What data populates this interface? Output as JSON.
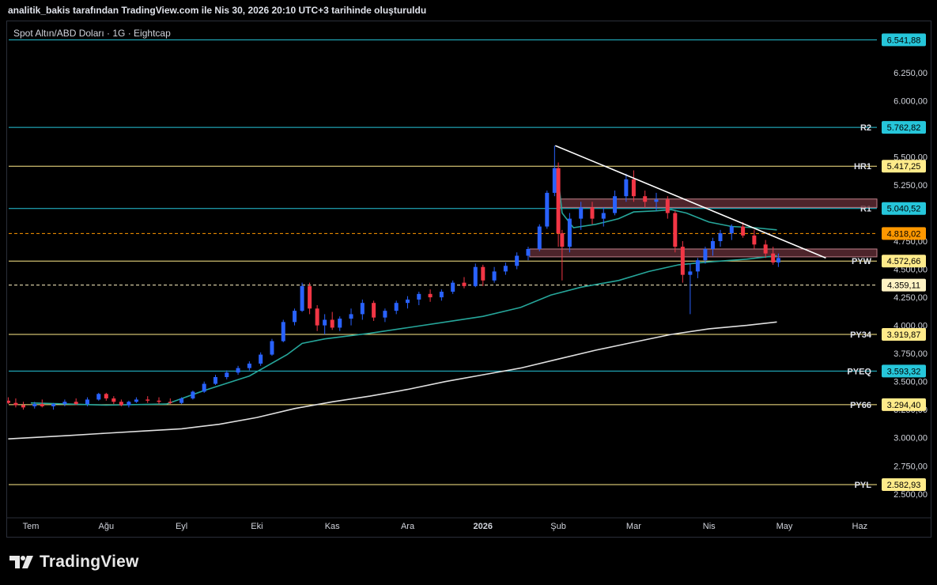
{
  "header": {
    "text": "analitik_bakis tarafından TradingView.com ile Nis 30, 2026 20:10 UTC+3 tarihinde oluşturuldu"
  },
  "brand": {
    "name": "TradingView"
  },
  "chart_data": {
    "type": "candlestick",
    "title": "Spot Altın/ABD Doları · 1G · Eightcap",
    "ylim": [
      2400,
      6650
    ],
    "colors": {
      "up": "#2962ff",
      "down": "#f23645",
      "ema_fast": "#26a69a",
      "ema_slow": "#e0e0e0",
      "trend": "#ffffff",
      "zone": "#5a2a33"
    },
    "y_ticks": [
      {
        "value": 2500,
        "label": "2.500,00"
      },
      {
        "value": 2750,
        "label": "2.750,00"
      },
      {
        "value": 3000,
        "label": "3.000,00"
      },
      {
        "value": 3250,
        "label": "3.250,00"
      },
      {
        "value": 3500,
        "label": "3.500,00"
      },
      {
        "value": 3750,
        "label": "3.750,00"
      },
      {
        "value": 4000,
        "label": "4.000,00"
      },
      {
        "value": 4250,
        "label": "4.250,00"
      },
      {
        "value": 4500,
        "label": "4.500,00"
      },
      {
        "value": 4750,
        "label": "4.750,00"
      },
      {
        "value": 5250,
        "label": "5.250,00"
      },
      {
        "value": 5500,
        "label": "5.500,00"
      },
      {
        "value": 6000,
        "label": "6.000,00"
      },
      {
        "value": 6250,
        "label": "6.250,00"
      }
    ],
    "x_ticks": [
      {
        "month": 0,
        "label": "Tem"
      },
      {
        "month": 1,
        "label": "Ağu"
      },
      {
        "month": 2,
        "label": "Eyl"
      },
      {
        "month": 3,
        "label": "Eki"
      },
      {
        "month": 4,
        "label": "Kas"
      },
      {
        "month": 5,
        "label": "Ara"
      },
      {
        "month": 6,
        "label": "2026"
      },
      {
        "month": 7,
        "label": "Şub"
      },
      {
        "month": 8,
        "label": "Mar"
      },
      {
        "month": 9,
        "label": "Nis"
      },
      {
        "month": 10,
        "label": "May"
      },
      {
        "month": 11,
        "label": "Haz"
      }
    ],
    "levels": [
      {
        "name": "",
        "value": 6541.88,
        "label": "6.541,88",
        "color": "#26c6da",
        "style": "solid"
      },
      {
        "name": "R2",
        "value": 5762.82,
        "label": "5.762,82",
        "color": "#26c6da",
        "style": "solid"
      },
      {
        "name": "HR1",
        "value": 5417.25,
        "label": "5.417,25",
        "color": "#ffeb8a",
        "style": "solid"
      },
      {
        "name": "R1",
        "value": 5040.52,
        "label": "5.040,52",
        "color": "#26c6da",
        "style": "solid"
      },
      {
        "name": "",
        "value": 4818.02,
        "label": "4.818,02",
        "color": "#ff9800",
        "style": "dashed"
      },
      {
        "name": "PYW",
        "value": 4572.66,
        "label": "4.572,66",
        "color": "#ffeb8a",
        "style": "solid"
      },
      {
        "name": "",
        "value": 4359.11,
        "label": "4.359,11",
        "color": "#fff3c4",
        "style": "dashed"
      },
      {
        "name": "PY34",
        "value": 3919.87,
        "label": "3.919,87",
        "color": "#ffeb8a",
        "style": "solid"
      },
      {
        "name": "PYEQ",
        "value": 3593.32,
        "label": "3.593,32",
        "color": "#26c6da",
        "style": "solid"
      },
      {
        "name": "PY66",
        "value": 3294.4,
        "label": "3.294,40",
        "color": "#ffeb8a",
        "style": "solid"
      },
      {
        "name": "PYL",
        "value": 2582.93,
        "label": "2.582,93",
        "color": "#ffeb8a",
        "style": "solid"
      }
    ],
    "zones": [
      {
        "from_month": 7.0,
        "to_month": 11.3,
        "low": 5050,
        "high": 5125
      },
      {
        "from_month": 6.62,
        "to_month": 11.3,
        "low": 4610,
        "high": 4680
      }
    ],
    "trendline": {
      "start": {
        "month": 6.96,
        "value": 5600
      },
      "end": {
        "month": 10.55,
        "value": 4600
      }
    },
    "ema_fast": [
      [
        0,
        3310
      ],
      [
        1,
        3290
      ],
      [
        1.8,
        3300
      ],
      [
        2.3,
        3420
      ],
      [
        2.9,
        3550
      ],
      [
        3.4,
        3740
      ],
      [
        3.6,
        3840
      ],
      [
        3.9,
        3880
      ],
      [
        4.5,
        3930
      ],
      [
        5,
        3980
      ],
      [
        5.6,
        4040
      ],
      [
        6,
        4080
      ],
      [
        6.5,
        4160
      ],
      [
        6.9,
        4270
      ],
      [
        7.3,
        4340
      ],
      [
        7.8,
        4400
      ],
      [
        8.2,
        4480
      ],
      [
        8.6,
        4540
      ],
      [
        9,
        4565
      ],
      [
        9.5,
        4590
      ],
      [
        9.9,
        4620
      ]
    ],
    "ema_slow": [
      [
        -0.3,
        2990
      ],
      [
        0.5,
        3020
      ],
      [
        1,
        3040
      ],
      [
        1.5,
        3060
      ],
      [
        2,
        3080
      ],
      [
        2.5,
        3120
      ],
      [
        3,
        3180
      ],
      [
        3.5,
        3260
      ],
      [
        4,
        3320
      ],
      [
        4.5,
        3370
      ],
      [
        5,
        3430
      ],
      [
        5.5,
        3500
      ],
      [
        6,
        3560
      ],
      [
        6.5,
        3620
      ],
      [
        7,
        3700
      ],
      [
        7.5,
        3780
      ],
      [
        8,
        3850
      ],
      [
        8.5,
        3920
      ],
      [
        9,
        3970
      ],
      [
        9.5,
        4000
      ],
      [
        9.9,
        4030
      ]
    ],
    "ema_mid": [
      [
        7.0,
        5300
      ],
      [
        7.05,
        5000
      ],
      [
        7.2,
        4870
      ],
      [
        7.5,
        4900
      ],
      [
        7.8,
        4950
      ],
      [
        8.0,
        5010
      ],
      [
        8.3,
        5020
      ],
      [
        8.5,
        5030
      ],
      [
        8.7,
        5000
      ],
      [
        9.0,
        4920
      ],
      [
        9.3,
        4880
      ],
      [
        9.6,
        4870
      ],
      [
        9.9,
        4850
      ]
    ],
    "candles": [
      [
        -0.3,
        3330,
        3360,
        3300,
        3310
      ],
      [
        -0.2,
        3310,
        3350,
        3270,
        3290
      ],
      [
        -0.1,
        3290,
        3320,
        3250,
        3270
      ],
      [
        0.05,
        3280,
        3320,
        3260,
        3300
      ],
      [
        0.15,
        3300,
        3340,
        3270,
        3280
      ],
      [
        0.3,
        3280,
        3310,
        3250,
        3300
      ],
      [
        0.45,
        3300,
        3340,
        3280,
        3320
      ],
      [
        0.6,
        3320,
        3350,
        3290,
        3300
      ],
      [
        0.75,
        3300,
        3360,
        3280,
        3340
      ],
      [
        0.9,
        3340,
        3400,
        3330,
        3390
      ],
      [
        1.0,
        3390,
        3400,
        3330,
        3350
      ],
      [
        1.1,
        3350,
        3370,
        3300,
        3320
      ],
      [
        1.2,
        3320,
        3340,
        3280,
        3290
      ],
      [
        1.3,
        3290,
        3330,
        3270,
        3320
      ],
      [
        1.4,
        3320,
        3360,
        3310,
        3340
      ],
      [
        1.55,
        3340,
        3370,
        3310,
        3330
      ],
      [
        1.7,
        3330,
        3360,
        3300,
        3320
      ],
      [
        1.85,
        3320,
        3350,
        3300,
        3310
      ],
      [
        2.0,
        3310,
        3360,
        3300,
        3350
      ],
      [
        2.15,
        3350,
        3420,
        3340,
        3410
      ],
      [
        2.3,
        3410,
        3500,
        3400,
        3480
      ],
      [
        2.45,
        3480,
        3560,
        3470,
        3540
      ],
      [
        2.6,
        3540,
        3600,
        3520,
        3580
      ],
      [
        2.75,
        3580,
        3640,
        3560,
        3620
      ],
      [
        2.9,
        3620,
        3680,
        3600,
        3660
      ],
      [
        3.05,
        3660,
        3760,
        3640,
        3740
      ],
      [
        3.2,
        3740,
        3880,
        3730,
        3860
      ],
      [
        3.35,
        3860,
        4050,
        3850,
        4030
      ],
      [
        3.5,
        4030,
        4150,
        4000,
        4130
      ],
      [
        3.6,
        4130,
        4380,
        4120,
        4350
      ],
      [
        3.7,
        4350,
        4380,
        4100,
        4150
      ],
      [
        3.8,
        4150,
        4180,
        3950,
        4000
      ],
      [
        3.9,
        4000,
        4100,
        3920,
        4050
      ],
      [
        4.0,
        4050,
        4120,
        3960,
        3980
      ],
      [
        4.1,
        3980,
        4080,
        3950,
        4060
      ],
      [
        4.25,
        4060,
        4150,
        4000,
        4100
      ],
      [
        4.4,
        4100,
        4230,
        4050,
        4200
      ],
      [
        4.55,
        4200,
        4220,
        4040,
        4070
      ],
      [
        4.7,
        4070,
        4150,
        4030,
        4130
      ],
      [
        4.85,
        4130,
        4220,
        4100,
        4200
      ],
      [
        5.0,
        4200,
        4260,
        4150,
        4230
      ],
      [
        5.15,
        4230,
        4300,
        4180,
        4280
      ],
      [
        5.3,
        4280,
        4320,
        4210,
        4250
      ],
      [
        5.45,
        4250,
        4320,
        4220,
        4300
      ],
      [
        5.6,
        4300,
        4400,
        4280,
        4380
      ],
      [
        5.75,
        4380,
        4430,
        4330,
        4350
      ],
      [
        5.9,
        4350,
        4550,
        4340,
        4520
      ],
      [
        6.0,
        4520,
        4540,
        4350,
        4400
      ],
      [
        6.15,
        4400,
        4520,
        4380,
        4480
      ],
      [
        6.3,
        4480,
        4560,
        4450,
        4530
      ],
      [
        6.45,
        4530,
        4650,
        4500,
        4620
      ],
      [
        6.6,
        4620,
        4700,
        4580,
        4680
      ],
      [
        6.75,
        4680,
        4900,
        4660,
        4880
      ],
      [
        6.85,
        4880,
        5200,
        4860,
        5180
      ],
      [
        6.95,
        5180,
        5600,
        5150,
        5400
      ],
      [
        7.0,
        5400,
        5450,
        4700,
        4820
      ],
      [
        7.05,
        4820,
        4850,
        4400,
        4700
      ],
      [
        7.15,
        4700,
        5000,
        4650,
        4950
      ],
      [
        7.3,
        4950,
        5100,
        4850,
        5050
      ],
      [
        7.45,
        5050,
        5100,
        4900,
        4950
      ],
      [
        7.6,
        4950,
        5050,
        4880,
        5000
      ],
      [
        7.75,
        5000,
        5200,
        4980,
        5150
      ],
      [
        7.9,
        5150,
        5350,
        5100,
        5300
      ],
      [
        8.0,
        5300,
        5380,
        5100,
        5150
      ],
      [
        8.15,
        5150,
        5200,
        5050,
        5100
      ],
      [
        8.3,
        5100,
        5180,
        5020,
        5120
      ],
      [
        8.45,
        5120,
        5150,
        4950,
        5000
      ],
      [
        8.55,
        5000,
        5020,
        4650,
        4700
      ],
      [
        8.65,
        4700,
        4750,
        4380,
        4450
      ],
      [
        8.75,
        4450,
        4550,
        4100,
        4480
      ],
      [
        8.85,
        4480,
        4600,
        4420,
        4580
      ],
      [
        8.95,
        4580,
        4700,
        4550,
        4680
      ],
      [
        9.05,
        4680,
        4780,
        4620,
        4750
      ],
      [
        9.15,
        4750,
        4850,
        4700,
        4820
      ],
      [
        9.3,
        4820,
        4900,
        4760,
        4880
      ],
      [
        9.45,
        4880,
        4920,
        4780,
        4800
      ],
      [
        9.6,
        4800,
        4850,
        4680,
        4720
      ],
      [
        9.75,
        4720,
        4760,
        4600,
        4640
      ],
      [
        9.85,
        4640,
        4700,
        4540,
        4560
      ],
      [
        9.92,
        4560,
        4640,
        4520,
        4600
      ]
    ]
  }
}
